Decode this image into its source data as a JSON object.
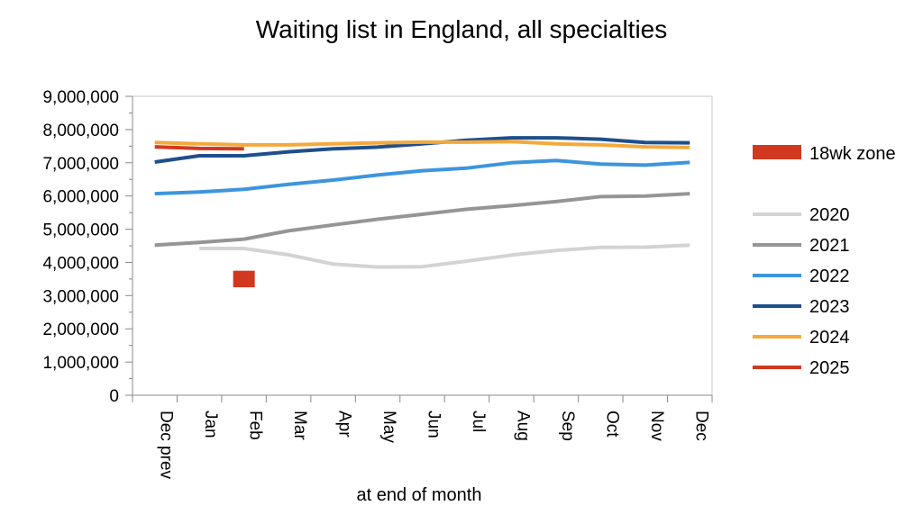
{
  "chart_data": {
    "type": "line",
    "title": "Waiting list in England, all specialties",
    "xlabel": "at end of month",
    "ylabel": "",
    "ylim": [
      0,
      9000000
    ],
    "yticks": [
      0,
      1000000,
      2000000,
      3000000,
      4000000,
      5000000,
      6000000,
      7000000,
      8000000,
      9000000
    ],
    "ytick_labels": [
      "0",
      "1,000,000",
      "2,000,000",
      "3,000,000",
      "4,000,000",
      "5,000,000",
      "6,000,000",
      "7,000,000",
      "8,000,000",
      "9,000,000"
    ],
    "categories": [
      "Dec prev",
      "Jan",
      "Feb",
      "Mar",
      "Apr",
      "May",
      "Jun",
      "Jul",
      "Aug",
      "Sep",
      "Oct",
      "Nov",
      "Dec"
    ],
    "grid": false,
    "legend_position": "right",
    "zone": {
      "name": "18wk zone",
      "color": "#d0391f",
      "category": "Feb",
      "range": [
        3250000,
        3750000
      ]
    },
    "series": [
      {
        "name": "2020",
        "color": "#d3d3d3",
        "values": [
          null,
          4420000,
          4420000,
          4230000,
          3950000,
          3860000,
          3870000,
          4040000,
          4220000,
          4360000,
          4450000,
          4460000,
          4520000
        ]
      },
      {
        "name": "2021",
        "color": "#959595",
        "values": [
          4520000,
          4600000,
          4700000,
          4950000,
          5130000,
          5300000,
          5450000,
          5600000,
          5710000,
          5830000,
          5980000,
          6000000,
          6070000
        ]
      },
      {
        "name": "2022",
        "color": "#3d95dc",
        "values": [
          6070000,
          6120000,
          6200000,
          6350000,
          6480000,
          6630000,
          6760000,
          6840000,
          7000000,
          7070000,
          6960000,
          6930000,
          7010000
        ]
      },
      {
        "name": "2023",
        "color": "#1f4f8c",
        "values": [
          7020000,
          7210000,
          7210000,
          7330000,
          7420000,
          7470000,
          7570000,
          7680000,
          7750000,
          7750000,
          7710000,
          7610000,
          7600000
        ]
      },
      {
        "name": "2024",
        "color": "#f3a93c",
        "values": [
          7610000,
          7570000,
          7540000,
          7540000,
          7570000,
          7600000,
          7620000,
          7620000,
          7640000,
          7570000,
          7540000,
          7480000,
          7460000
        ]
      },
      {
        "name": "2025",
        "color": "#d0391f",
        "values": [
          7480000,
          7430000,
          7420000,
          null,
          null,
          null,
          null,
          null,
          null,
          null,
          null,
          null,
          null
        ]
      }
    ]
  }
}
